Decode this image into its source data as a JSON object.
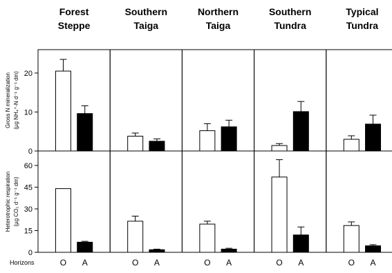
{
  "chart_data": {
    "type": "bar",
    "columns": [
      {
        "title_line1": "Forest",
        "title_line2": "Steppe"
      },
      {
        "title_line1": "Southern",
        "title_line2": "Taiga"
      },
      {
        "title_line1": "Northern",
        "title_line2": "Taiga"
      },
      {
        "title_line1": "Southern",
        "title_line2": "Tundra"
      },
      {
        "title_line1": "Typical",
        "title_line2": "Tundra"
      }
    ],
    "categories": [
      "O",
      "A"
    ],
    "bar_colors": [
      "#ffffff",
      "#000000"
    ],
    "x_row_label": "Horizons",
    "rows": [
      {
        "ylabel_line1": "Gross  N mineralization",
        "ylabel_line2": "(µg NH₄⁺-N d⁻¹ g⁻¹ dm)",
        "ylim": [
          0,
          26
        ],
        "yticks": [
          0,
          10,
          20
        ],
        "values": [
          [
            20.5,
            9.6
          ],
          [
            3.8,
            2.5
          ],
          [
            5.2,
            6.2
          ],
          [
            1.4,
            10.1
          ],
          [
            3.0,
            6.9
          ]
        ],
        "errors": [
          [
            3.0,
            2.0
          ],
          [
            0.8,
            0.6
          ],
          [
            1.8,
            1.7
          ],
          [
            0.5,
            2.6
          ],
          [
            0.9,
            2.3
          ]
        ]
      },
      {
        "ylabel_line1": "Heterotrophic respiration",
        "ylabel_line2": "(µg CO₂ d⁻¹ g⁻¹ dm)",
        "ylim": [
          0,
          70
        ],
        "yticks": [
          0,
          15,
          30,
          45,
          60
        ],
        "values": [
          [
            44,
            7.0
          ],
          [
            21.5,
            1.8
          ],
          [
            19.5,
            2.2
          ],
          [
            52,
            12
          ],
          [
            18.5,
            4.5
          ]
        ],
        "errors": [
          [
            0,
            0.6
          ],
          [
            3.5,
            0.4
          ],
          [
            2.0,
            0.6
          ],
          [
            12,
            5.5
          ],
          [
            2.5,
            0.8
          ]
        ]
      }
    ]
  }
}
